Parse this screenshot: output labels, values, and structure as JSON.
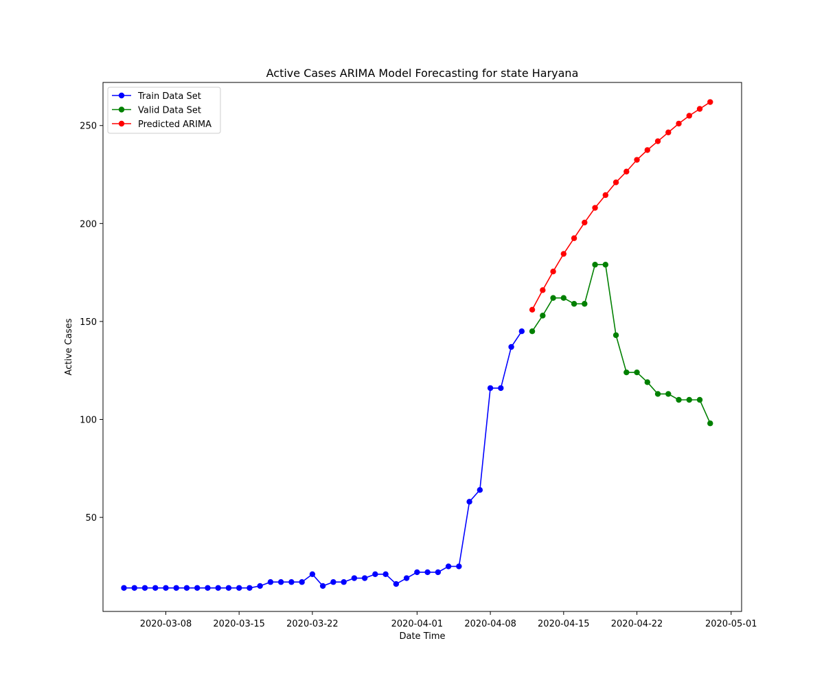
{
  "chart_data": {
    "type": "line",
    "title": "Active Cases ARIMA Model Forecasting for state Haryana",
    "xlabel": "Date Time",
    "ylabel": "Active Cases",
    "xlim": [
      "2020-03-02",
      "2020-05-02"
    ],
    "ylim": [
      2,
      272
    ],
    "x_ticks": [
      "2020-03-08",
      "2020-03-15",
      "2020-03-22",
      "2020-04-01",
      "2020-04-08",
      "2020-04-15",
      "2020-04-22",
      "2020-05-01"
    ],
    "y_ticks": [
      50,
      100,
      150,
      200,
      250
    ],
    "grid": false,
    "legend_position": "upper-left",
    "marker": "circle",
    "series": [
      {
        "name": "Train Data Set",
        "color": "#0000ff",
        "start_date": "2020-03-04",
        "values": [
          14,
          14,
          14,
          14,
          14,
          14,
          14,
          14,
          14,
          14,
          14,
          14,
          14,
          15,
          17,
          17,
          17,
          17,
          21,
          15,
          17,
          17,
          19,
          19,
          21,
          21,
          16,
          19,
          22,
          22,
          22,
          25,
          25,
          58,
          64,
          116,
          116,
          137,
          145
        ]
      },
      {
        "name": "Valid Data Set",
        "color": "#008000",
        "start_date": "2020-04-12",
        "values": [
          145,
          153,
          162,
          162,
          159,
          159,
          179,
          179,
          143,
          124,
          124,
          119,
          113,
          113,
          110,
          110,
          110,
          98
        ]
      },
      {
        "name": "Predicted ARIMA",
        "color": "#ff0000",
        "start_date": "2020-04-12",
        "values": [
          156,
          166,
          175.5,
          184.5,
          192.5,
          200.5,
          208,
          214.5,
          221,
          226.5,
          232.5,
          237.5,
          242,
          246.5,
          251,
          255,
          258.5,
          262
        ]
      }
    ]
  }
}
